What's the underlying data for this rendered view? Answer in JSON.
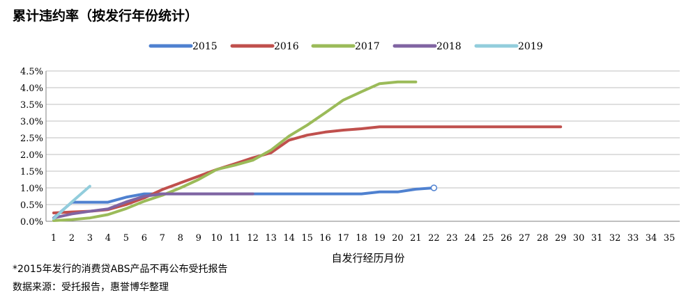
{
  "chart_data": {
    "type": "line",
    "title": "累计违约率（按发行年份统计）",
    "xlabel": "自发行经历月份",
    "ylabel": "",
    "x_ticks": [
      1,
      2,
      3,
      4,
      5,
      6,
      7,
      8,
      9,
      10,
      11,
      12,
      13,
      14,
      15,
      16,
      17,
      18,
      19,
      20,
      21,
      22,
      23,
      24,
      25,
      26,
      27,
      28,
      29,
      30,
      31,
      32,
      33,
      34,
      35
    ],
    "xlim": [
      1,
      35
    ],
    "ylim": [
      0,
      0.045
    ],
    "y_ticks": [
      0,
      0.005,
      0.01,
      0.015,
      0.02,
      0.025,
      0.03,
      0.035,
      0.04,
      0.045
    ],
    "y_tick_labels": [
      "0.0%",
      "0.5%",
      "1.0%",
      "1.5%",
      "2.0%",
      "2.5%",
      "3.0%",
      "3.5%",
      "4.0%",
      "4.5%"
    ],
    "grid": true,
    "legend_position": "top",
    "series": [
      {
        "name": "2015",
        "color": "#4f81d0",
        "end_marker": true,
        "x": [
          1,
          2,
          3,
          4,
          5,
          6,
          7,
          8,
          9,
          10,
          11,
          12,
          13,
          14,
          15,
          16,
          17,
          18,
          19,
          20,
          21,
          22
        ],
        "y": [
          0.001,
          0.0057,
          0.0057,
          0.0057,
          0.0072,
          0.0082,
          0.0082,
          0.0082,
          0.0082,
          0.0082,
          0.0082,
          0.0082,
          0.0082,
          0.0082,
          0.0082,
          0.0082,
          0.0082,
          0.0082,
          0.0088,
          0.0088,
          0.0096,
          0.01
        ]
      },
      {
        "name": "2016",
        "color": "#c0504d",
        "end_marker": false,
        "x": [
          1,
          2,
          3,
          4,
          5,
          6,
          7,
          8,
          9,
          10,
          11,
          12,
          13,
          14,
          15,
          16,
          17,
          18,
          19,
          20,
          21,
          22,
          23,
          24,
          25,
          26,
          27,
          28,
          29
        ],
        "y": [
          0.0025,
          0.0028,
          0.003,
          0.0035,
          0.005,
          0.007,
          0.0095,
          0.0115,
          0.0135,
          0.0155,
          0.0172,
          0.019,
          0.0205,
          0.0243,
          0.0258,
          0.0267,
          0.0273,
          0.0277,
          0.0283,
          0.0283,
          0.0283,
          0.0283,
          0.0283,
          0.0283,
          0.0283,
          0.0283,
          0.0283,
          0.0283,
          0.0283
        ]
      },
      {
        "name": "2017",
        "color": "#9bbb59",
        "end_marker": false,
        "x": [
          1,
          2,
          3,
          4,
          5,
          6,
          7,
          8,
          9,
          10,
          11,
          12,
          13,
          14,
          15,
          16,
          17,
          18,
          19,
          20,
          21
        ],
        "y": [
          0.0002,
          0.0005,
          0.001,
          0.002,
          0.0038,
          0.006,
          0.0078,
          0.01,
          0.0125,
          0.0155,
          0.0168,
          0.0183,
          0.0213,
          0.0255,
          0.0288,
          0.0325,
          0.0363,
          0.0388,
          0.0412,
          0.0417,
          0.0417
        ]
      },
      {
        "name": "2018",
        "color": "#8064a2",
        "end_marker": false,
        "x": [
          1,
          2,
          3,
          4,
          5,
          6,
          7,
          8,
          9,
          10,
          11,
          12
        ],
        "y": [
          0.001,
          0.0022,
          0.003,
          0.0037,
          0.0058,
          0.0075,
          0.0082,
          0.0082,
          0.0082,
          0.0082,
          0.0082,
          0.0082
        ]
      },
      {
        "name": "2019",
        "color": "#92cddc",
        "end_marker": false,
        "x": [
          1,
          2,
          3
        ],
        "y": [
          0.0008,
          0.0058,
          0.0105
        ]
      }
    ]
  },
  "footnotes": {
    "note": "*2015年发行的消费贷ABS产品不再公布受托报告",
    "source": "数据来源：受托报告，惠誉博华整理"
  }
}
